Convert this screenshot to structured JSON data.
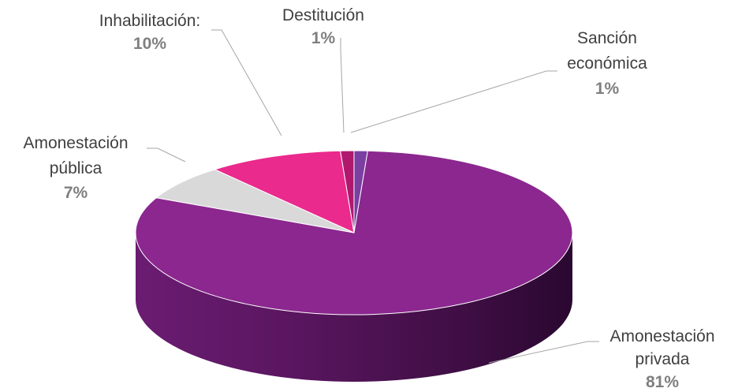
{
  "chart_data": {
    "type": "pie",
    "title": "",
    "style": "3d",
    "slices": [
      {
        "label_lines": [
          "Amonestación",
          "privada"
        ],
        "percent": "81%",
        "value": 81,
        "color": "#8b278f"
      },
      {
        "label_lines": [
          "Amonestación",
          "pública"
        ],
        "percent": "7%",
        "value": 7,
        "color": "#d9d9d9"
      },
      {
        "label_lines": [
          "Inhabilitación:"
        ],
        "percent": "10%",
        "value": 10,
        "color": "#ea2a8c"
      },
      {
        "label_lines": [
          "Destitución"
        ],
        "percent": "1%",
        "value": 1,
        "color": "#b0186e"
      },
      {
        "label_lines": [
          "Sanción",
          "económica"
        ],
        "percent": "1%",
        "value": 1,
        "color": "#7a3fa0"
      }
    ],
    "legend": "none"
  }
}
